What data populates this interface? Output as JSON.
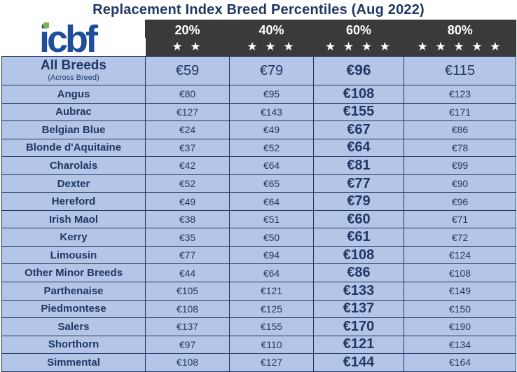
{
  "title": "Replacement Index Breed Percentiles (Aug 2022)",
  "logo_text": "icbf",
  "colors": {
    "header_bg": "#3a3a3a",
    "cell_bg": "#b4c6e7",
    "text": "#1f3864",
    "logo_blue": "#1f4e9a",
    "logo_green": "#7ab648"
  },
  "header": {
    "percentiles": [
      "20%",
      "40%",
      "60%",
      "80%"
    ],
    "stars": [
      "★ ★",
      "★ ★ ★",
      "★ ★ ★ ★",
      "★ ★ ★ ★ ★"
    ]
  },
  "all_breeds": {
    "label": "All Breeds",
    "sublabel": "(Across Breed)",
    "values": [
      "€59",
      "€79",
      "€96",
      "€115"
    ]
  },
  "breeds": [
    {
      "name": "Angus",
      "values": [
        "€80",
        "€95",
        "€108",
        "€123"
      ]
    },
    {
      "name": "Aubrac",
      "values": [
        "€127",
        "€143",
        "€155",
        "€171"
      ]
    },
    {
      "name": "Belgian Blue",
      "values": [
        "€24",
        "€49",
        "€67",
        "€86"
      ]
    },
    {
      "name": "Blonde d'Aquitaine",
      "values": [
        "€37",
        "€52",
        "€64",
        "€78"
      ]
    },
    {
      "name": "Charolais",
      "values": [
        "€42",
        "€64",
        "€81",
        "€99"
      ]
    },
    {
      "name": "Dexter",
      "values": [
        "€52",
        "€65",
        "€77",
        "€90"
      ]
    },
    {
      "name": "Hereford",
      "values": [
        "€49",
        "€64",
        "€79",
        "€96"
      ]
    },
    {
      "name": "Irish Maol",
      "values": [
        "€38",
        "€51",
        "€60",
        "€71"
      ]
    },
    {
      "name": "Kerry",
      "values": [
        "€35",
        "€50",
        "€61",
        "€72"
      ]
    },
    {
      "name": "Limousin",
      "values": [
        "€77",
        "€94",
        "€108",
        "€124"
      ]
    },
    {
      "name": "Other Minor Breeds",
      "values": [
        "€44",
        "€64",
        "€86",
        "€108"
      ]
    },
    {
      "name": "Parthenaise",
      "values": [
        "€105",
        "€121",
        "€133",
        "€149"
      ]
    },
    {
      "name": "Piedmontese",
      "values": [
        "€108",
        "€125",
        "€137",
        "€150"
      ]
    },
    {
      "name": "Salers",
      "values": [
        "€137",
        "€155",
        "€170",
        "€190"
      ]
    },
    {
      "name": "Shorthorn",
      "values": [
        "€97",
        "€110",
        "€121",
        "€134"
      ]
    },
    {
      "name": "Simmental",
      "values": [
        "€108",
        "€127",
        "€144",
        "€164"
      ]
    }
  ],
  "chart_data": {
    "type": "table",
    "title": "Replacement Index Breed Percentiles (Aug 2022)",
    "columns": [
      "20%",
      "40%",
      "60%",
      "80%"
    ],
    "rows": [
      {
        "breed": "All Breeds",
        "values": [
          59,
          79,
          96,
          115
        ]
      },
      {
        "breed": "Angus",
        "values": [
          80,
          95,
          108,
          123
        ]
      },
      {
        "breed": "Aubrac",
        "values": [
          127,
          143,
          155,
          171
        ]
      },
      {
        "breed": "Belgian Blue",
        "values": [
          24,
          49,
          67,
          86
        ]
      },
      {
        "breed": "Blonde d'Aquitaine",
        "values": [
          37,
          52,
          64,
          78
        ]
      },
      {
        "breed": "Charolais",
        "values": [
          42,
          64,
          81,
          99
        ]
      },
      {
        "breed": "Dexter",
        "values": [
          52,
          65,
          77,
          90
        ]
      },
      {
        "breed": "Hereford",
        "values": [
          49,
          64,
          79,
          96
        ]
      },
      {
        "breed": "Irish Maol",
        "values": [
          38,
          51,
          60,
          71
        ]
      },
      {
        "breed": "Kerry",
        "values": [
          35,
          50,
          61,
          72
        ]
      },
      {
        "breed": "Limousin",
        "values": [
          77,
          94,
          108,
          124
        ]
      },
      {
        "breed": "Other Minor Breeds",
        "values": [
          44,
          64,
          86,
          108
        ]
      },
      {
        "breed": "Parthenaise",
        "values": [
          105,
          121,
          133,
          149
        ]
      },
      {
        "breed": "Piedmontese",
        "values": [
          108,
          125,
          137,
          150
        ]
      },
      {
        "breed": "Salers",
        "values": [
          137,
          155,
          170,
          190
        ]
      },
      {
        "breed": "Shorthorn",
        "values": [
          97,
          110,
          121,
          134
        ]
      },
      {
        "breed": "Simmental",
        "values": [
          108,
          127,
          144,
          164
        ]
      }
    ]
  }
}
